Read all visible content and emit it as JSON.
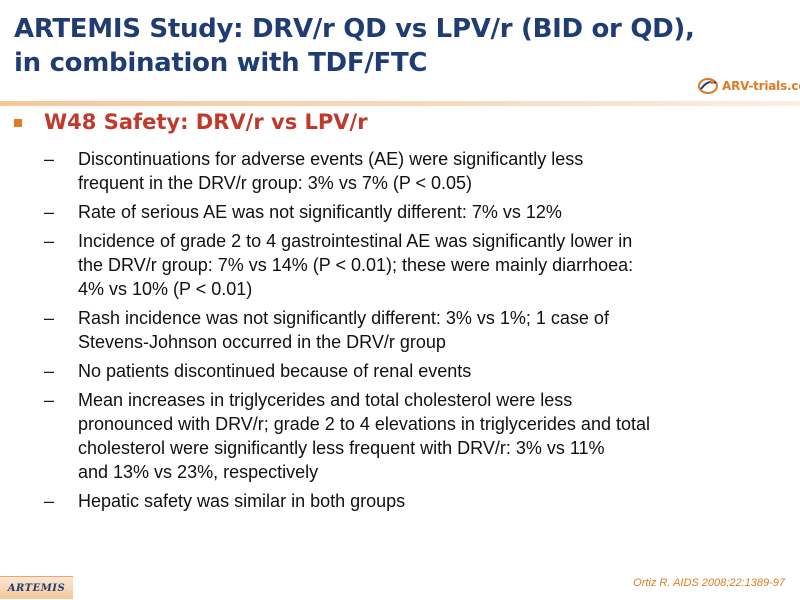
{
  "slide": {
    "title_lines": [
      "ARTEMIS Study: DRV/r QD vs LPV/r (BID or QD),",
      "in combination with TDF/FTC"
    ],
    "logo_text": "ARV-trials.com",
    "main_bullet": "W48 Safety: DRV/r vs LPV/r",
    "dash_glyph": "–",
    "items": [
      {
        "lines": [
          "Discontinuations for adverse events (AE) were significantly less",
          "frequent in the DRV/r group: 3% vs 7% (P < 0.05)"
        ]
      },
      {
        "lines": [
          "Rate of serious AE was not significantly different: 7% vs 12%"
        ]
      },
      {
        "lines": [
          "Incidence of grade 2 to 4 gastrointestinal AE was significantly lower in",
          "the DRV/r group: 7% vs 14% (P < 0.01); these were mainly diarrhoea:",
          "4% vs 10% (P < 0.01)"
        ]
      },
      {
        "lines": [
          "Rash incidence was not significantly different: 3% vs 1%; 1 case of",
          "Stevens-Johnson occurred in the DRV/r group"
        ]
      },
      {
        "lines": [
          "No patients discontinued because of renal events"
        ]
      },
      {
        "lines": [
          "Mean increases in triglycerides and total cholesterol were less",
          "pronounced with DRV/r; grade 2 to 4 elevations in triglycerides and total",
          "cholesterol were significantly less frequent with DRV/r: 3% vs 11%",
          "and 13% vs 23%, respectively"
        ]
      },
      {
        "lines": [
          "Hepatic safety was similar in both groups"
        ]
      }
    ],
    "footer_label": "ARTEMIS",
    "citation": "Ortiz R. AIDS 2008;22:1389-97"
  },
  "colors": {
    "title": "#1f3d73",
    "accent_orange": "#e07b22",
    "bullet_red": "#c0392b"
  }
}
